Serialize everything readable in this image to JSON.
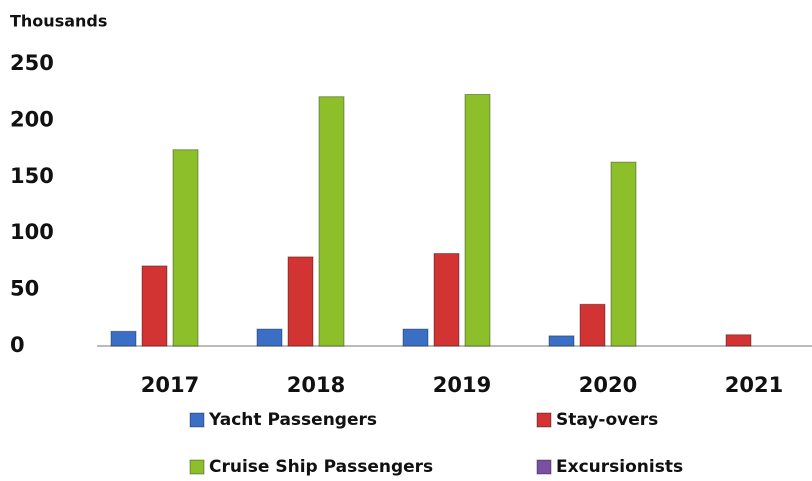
{
  "chart_data": {
    "type": "bar",
    "y_label": "Thousands",
    "categories": [
      "2017",
      "2018",
      "2019",
      "2020",
      "2021"
    ],
    "series": [
      {
        "name": "Yacht Passengers",
        "color": "#3b6fc6",
        "values": [
          13,
          15,
          15,
          9,
          0
        ]
      },
      {
        "name": "Stay-overs",
        "color": "#d23434",
        "values": [
          71,
          79,
          82,
          37,
          10
        ]
      },
      {
        "name": "Cruise Ship Passengers",
        "color": "#8dbf2b",
        "values": [
          174,
          221,
          223,
          163,
          0
        ]
      },
      {
        "name": "Excursionists",
        "color": "#7b4fa3",
        "values": [
          0,
          0,
          0,
          0,
          0
        ]
      }
    ],
    "ylim": [
      0,
      250
    ],
    "yticks": [
      0,
      50,
      100,
      150,
      200,
      250
    ],
    "grid": false
  }
}
